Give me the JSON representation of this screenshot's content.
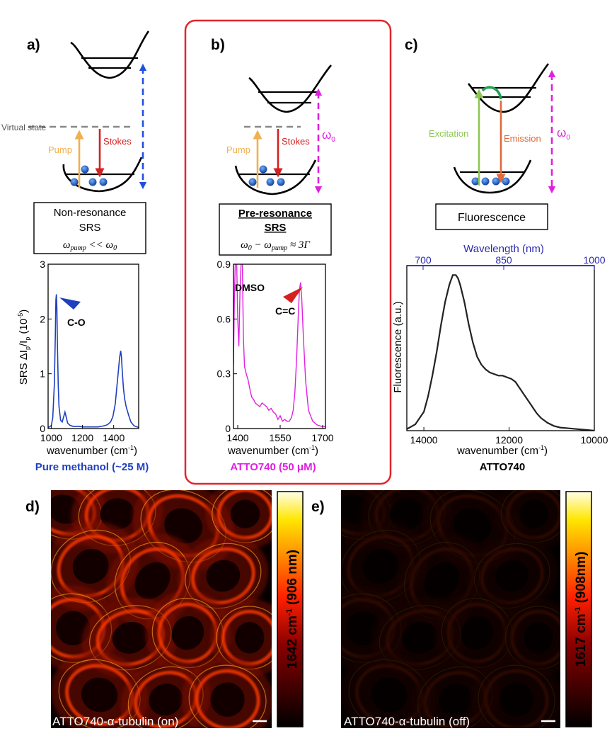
{
  "panels": {
    "a": {
      "letter": "a)",
      "virtual_state": "Virtual state",
      "pump": "Pump",
      "stokes": "Stokes",
      "box_line1": "Non-resonance",
      "box_line2": "SRS",
      "box_eq_left": "ω",
      "box_eq_left_sub": "pump",
      "box_eq_mid": " << ω",
      "box_eq_mid_sub": "0",
      "caption": "Pure methanol (~25 M)",
      "ylabel": "SRS ΔI",
      "ylabel_sub1": "p",
      "ylabel_mid": "/I",
      "ylabel_sub2": "p",
      "ylabel_unit": " (10",
      "ylabel_exp": "-5",
      "ylabel_close": ")",
      "xlabel": "wavenumber (cm",
      "xlabel_exp": "-1",
      "xlabel_close": ")",
      "peak_label": "C-O",
      "yticks": [
        "0",
        "1",
        "2",
        "3"
      ],
      "xticks": [
        "1000",
        "1200",
        "1400"
      ]
    },
    "b": {
      "letter": "b)",
      "pump": "Pump",
      "stokes": "Stokes",
      "omega": "ω",
      "omega_sub": "0",
      "box_line1": "Pre-resonance",
      "box_line2": "SRS",
      "box_eq": "ω",
      "box_eq_sub1": "0",
      "box_eq_minus": " − ω",
      "box_eq_sub2": "pump",
      "box_eq_right": " ≈ 3Γ",
      "caption": "ATTO740 (50 μM)",
      "xlabel": "wavenumber (cm",
      "xlabel_exp": "-1",
      "xlabel_close": ")",
      "dmso": "DMSO",
      "peak_label": "C=C",
      "yticks": [
        "0",
        "0.3",
        "0.6",
        "0.9"
      ],
      "xticks": [
        "1400",
        "1550",
        "1700"
      ]
    },
    "c": {
      "letter": "c)",
      "excitation": "Excitation",
      "emission": "Emission",
      "omega": "ω",
      "omega_sub": "0",
      "box": "Fluorescence",
      "top_axis_label": "Wavelength (nm)",
      "top_ticks": [
        "700",
        "850",
        "1000"
      ],
      "ylabel": "Fluorescence (a.u.)",
      "xlabel": "wavenumber (cm",
      "xlabel_exp": "-1",
      "xlabel_close": ")",
      "caption": "ATTO740",
      "xticks": [
        "14000",
        "12000",
        "10000"
      ]
    },
    "d": {
      "letter": "d)",
      "image_caption": "ATTO740-α-tubulin (on)",
      "colorbar_label": "1642 cm",
      "colorbar_exp": "-1",
      "colorbar_paren": " (906 nm)"
    },
    "e": {
      "letter": "e)",
      "image_caption": "ATTO740-α-tubulin (off)",
      "colorbar_label": "1617 cm",
      "colorbar_exp": "-1",
      "colorbar_paren": " (908nm)"
    }
  },
  "colors": {
    "methanol_blue": "#1f3fbf",
    "atto_magenta": "#e020e0",
    "red_box": "#e0262a",
    "pump_orange": "#f0b050",
    "stokes_red": "#d42020",
    "excitation_green": "#8cc850",
    "emission_orange": "#e06a3a",
    "arrow_blue": "#2050e0"
  },
  "chart_data": [
    {
      "type": "line",
      "panel": "a",
      "xlabel": "wavenumber (cm-1)",
      "ylabel": "SRS ΔIp/Ip (10-5)",
      "xlim": [
        980,
        1560
      ],
      "ylim": [
        0,
        3
      ],
      "series": [
        {
          "x": [
            980,
            1000,
            1010,
            1020,
            1026,
            1030,
            1033,
            1036,
            1040,
            1045,
            1050,
            1060,
            1070,
            1080,
            1088,
            1095,
            1105,
            1120,
            1140,
            1160,
            1180,
            1200,
            1220,
            1240,
            1260,
            1280,
            1300,
            1320,
            1340,
            1360,
            1380,
            1395,
            1410,
            1420,
            1430,
            1438,
            1445,
            1450,
            1455,
            1462,
            1470,
            1480,
            1495,
            1510,
            1530,
            1560
          ],
          "y": [
            0.02,
            0.05,
            0.2,
            0.8,
            1.7,
            2.35,
            2.45,
            2.2,
            1.5,
            0.8,
            0.4,
            0.15,
            0.12,
            0.22,
            0.3,
            0.22,
            0.1,
            0.06,
            0.04,
            0.04,
            0.04,
            0.03,
            0.03,
            0.03,
            0.03,
            0.03,
            0.03,
            0.04,
            0.05,
            0.07,
            0.12,
            0.22,
            0.45,
            0.75,
            1.05,
            1.3,
            1.42,
            1.3,
            1.05,
            0.75,
            0.55,
            0.4,
            0.25,
            0.12,
            0.05,
            0.02
          ]
        }
      ]
    },
    {
      "type": "line",
      "panel": "b",
      "xlabel": "wavenumber (cm-1)",
      "xlim": [
        1385,
        1710
      ],
      "ylim": [
        0,
        0.9
      ],
      "series": [
        {
          "x": [
            1385,
            1388,
            1392,
            1396,
            1400,
            1404,
            1408,
            1413,
            1416,
            1420,
            1424,
            1430,
            1436,
            1440,
            1445,
            1450,
            1456,
            1462,
            1470,
            1478,
            1486,
            1494,
            1502,
            1510,
            1518,
            1526,
            1534,
            1542,
            1550,
            1558,
            1566,
            1574,
            1582,
            1590,
            1596,
            1602,
            1608,
            1614,
            1618,
            1622,
            1626,
            1632,
            1640,
            1650,
            1665,
            1680,
            1700,
            1710
          ],
          "y": [
            0.35,
            0.7,
            0.95,
            0.95,
            0.6,
            0.45,
            0.75,
            0.95,
            0.95,
            0.5,
            0.34,
            0.3,
            0.27,
            0.24,
            0.2,
            0.17,
            0.16,
            0.14,
            0.13,
            0.12,
            0.14,
            0.13,
            0.12,
            0.1,
            0.11,
            0.09,
            0.08,
            0.05,
            0.07,
            0.04,
            0.05,
            0.04,
            0.04,
            0.06,
            0.1,
            0.2,
            0.38,
            0.62,
            0.76,
            0.8,
            0.72,
            0.5,
            0.26,
            0.1,
            0.04,
            0.02,
            0.01,
            0.01
          ]
        }
      ]
    },
    {
      "type": "line",
      "panel": "c",
      "xlabel": "wavenumber (cm-1)",
      "ylabel": "Fluorescence (a.u.)",
      "xlim": [
        14400,
        10000
      ],
      "ylim": [
        0,
        1.05
      ],
      "series": [
        {
          "x": [
            14400,
            14200,
            14000,
            13900,
            13800,
            13700,
            13600,
            13500,
            13400,
            13320,
            13250,
            13200,
            13150,
            13050,
            12950,
            12850,
            12750,
            12650,
            12550,
            12450,
            12350,
            12250,
            12150,
            12050,
            11950,
            11850,
            11750,
            11650,
            11550,
            11450,
            11350,
            11250,
            11100,
            10950,
            10800,
            10600,
            10400,
            10200,
            10000
          ],
          "y": [
            0.01,
            0.04,
            0.12,
            0.22,
            0.35,
            0.5,
            0.67,
            0.82,
            0.93,
            0.99,
            0.99,
            0.97,
            0.93,
            0.82,
            0.68,
            0.56,
            0.47,
            0.42,
            0.39,
            0.37,
            0.36,
            0.35,
            0.35,
            0.34,
            0.33,
            0.31,
            0.27,
            0.23,
            0.19,
            0.15,
            0.11,
            0.08,
            0.05,
            0.03,
            0.02,
            0.015,
            0.01,
            0.005,
            0.0
          ]
        }
      ]
    }
  ]
}
